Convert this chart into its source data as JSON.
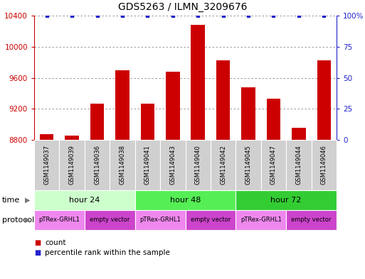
{
  "title": "GDS5263 / ILMN_3209676",
  "samples": [
    "GSM1149037",
    "GSM1149039",
    "GSM1149036",
    "GSM1149038",
    "GSM1149041",
    "GSM1149043",
    "GSM1149040",
    "GSM1149042",
    "GSM1149045",
    "GSM1149047",
    "GSM1149044",
    "GSM1149046"
  ],
  "counts": [
    8870,
    8855,
    9270,
    9700,
    9270,
    9680,
    10280,
    9820,
    9480,
    9330,
    8960,
    9820
  ],
  "percentiles": [
    100,
    100,
    100,
    100,
    100,
    100,
    100,
    100,
    100,
    100,
    100,
    100
  ],
  "ylim_left": [
    8800,
    10400
  ],
  "ylim_right": [
    0,
    100
  ],
  "yticks_left": [
    8800,
    9200,
    9600,
    10000,
    10400
  ],
  "yticks_right": [
    0,
    25,
    50,
    75,
    100
  ],
  "bar_color": "#cc0000",
  "dot_color": "#2222cc",
  "bar_width": 0.55,
  "time_groups": [
    {
      "label": "hour 24",
      "start": 0,
      "end": 3,
      "color": "#ccffcc"
    },
    {
      "label": "hour 48",
      "start": 4,
      "end": 7,
      "color": "#55ee55"
    },
    {
      "label": "hour 72",
      "start": 8,
      "end": 11,
      "color": "#33cc33"
    }
  ],
  "protocol_groups": [
    {
      "label": "pTRex-GRHL1",
      "start": 0,
      "end": 1,
      "color": "#ee88ee"
    },
    {
      "label": "empty vector",
      "start": 2,
      "end": 3,
      "color": "#cc44cc"
    },
    {
      "label": "pTRex-GRHL1",
      "start": 4,
      "end": 5,
      "color": "#ee88ee"
    },
    {
      "label": "empty vector",
      "start": 6,
      "end": 7,
      "color": "#cc44cc"
    },
    {
      "label": "pTRex-GRHL1",
      "start": 8,
      "end": 9,
      "color": "#ee88ee"
    },
    {
      "label": "empty vector",
      "start": 10,
      "end": 11,
      "color": "#cc44cc"
    }
  ],
  "time_label": "time",
  "protocol_label": "protocol",
  "legend_count_label": "count",
  "legend_percentile_label": "percentile rank within the sample",
  "background_color": "#ffffff",
  "grid_color": "#888888",
  "title_fontsize": 10,
  "tick_fontsize": 7.5,
  "sample_fontsize": 6,
  "row_fontsize": 8
}
